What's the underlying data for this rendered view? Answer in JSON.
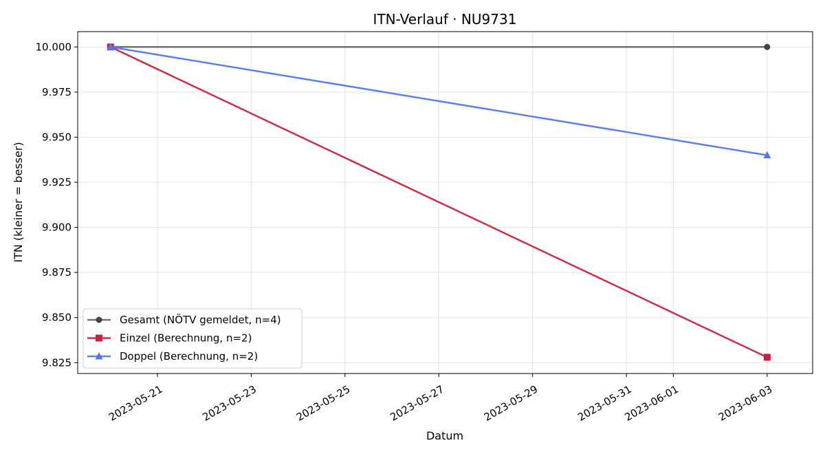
{
  "chart_data": {
    "type": "line",
    "title": "ITN-Verlauf · NU9731",
    "xlabel": "Datum",
    "ylabel": "ITN  (kleiner = besser)",
    "x_ticks": [
      "2023-05-21",
      "2023-05-23",
      "2023-05-25",
      "2023-05-27",
      "2023-05-29",
      "2023-05-31",
      "2023-06-01",
      "2023-06-03"
    ],
    "xlim": [
      "2023-05-19",
      "2023-06-04"
    ],
    "y_ticks": [
      "9.825",
      "9.850",
      "9.875",
      "9.900",
      "9.925",
      "9.950",
      "9.975",
      "10.000"
    ],
    "ylim": [
      9.819,
      10.0085
    ],
    "grid": true,
    "legend_position": "lower-left",
    "series": [
      {
        "name": "Gesamt (NÖTV gemeldet, n=4)",
        "color": "#444444",
        "marker": "circle",
        "points": [
          {
            "x": "2023-05-20",
            "y": 10.0
          },
          {
            "x": "2023-06-03",
            "y": 10.0
          }
        ]
      },
      {
        "name": "Einzel (Berechnung, n=2)",
        "color": "#c8223f",
        "marker": "square",
        "points": [
          {
            "x": "2023-05-20",
            "y": 10.0
          },
          {
            "x": "2023-06-03",
            "y": 9.828
          }
        ]
      },
      {
        "name": "Doppel (Berechnung, n=2)",
        "color": "#5577ee",
        "marker": "triangle",
        "points": [
          {
            "x": "2023-05-20",
            "y": 10.0
          },
          {
            "x": "2023-06-03",
            "y": 9.94
          }
        ]
      }
    ]
  }
}
